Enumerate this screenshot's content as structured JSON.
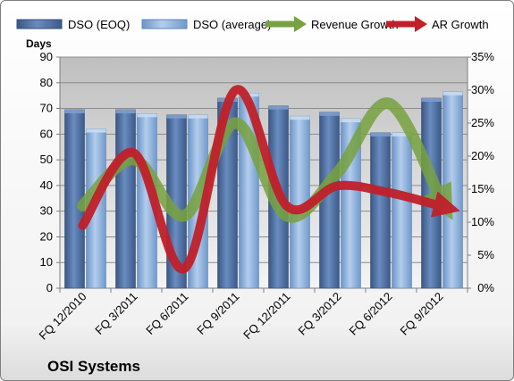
{
  "chart_data": {
    "type": "bar",
    "title": "OSI Systems",
    "ylabel": "Days",
    "categories": [
      "FQ 12/2010",
      "FQ 3/2011",
      "FQ 6/2011",
      "FQ 9/2011",
      "FQ 12/2011",
      "FQ 3/2012",
      "FQ 6/2012",
      "FQ 9/2012"
    ],
    "ylim": [
      0,
      90
    ],
    "y_ticks": [
      0,
      10,
      20,
      30,
      40,
      50,
      60,
      70,
      80,
      90
    ],
    "y2lim": [
      0,
      35
    ],
    "y2_ticks": [
      "0%",
      "5%",
      "10%",
      "15%",
      "20%",
      "25%",
      "30%",
      "35%"
    ],
    "series": [
      {
        "name": "DSO (EOQ)",
        "type": "bar",
        "axis": "left",
        "color": "#4f6fa0",
        "values": [
          69.5,
          69.5,
          67.5,
          74,
          71,
          68.5,
          60.5,
          74
        ]
      },
      {
        "name": "DSO (average)",
        "type": "bar",
        "axis": "left",
        "color": "#8db4e2",
        "values": [
          62,
          68,
          67.5,
          76,
          67,
          66,
          60.5,
          76.5
        ]
      },
      {
        "name": "Revenue Growth",
        "type": "line",
        "axis": "right",
        "color": "#77a23f",
        "values": [
          12.5,
          19.5,
          11,
          25,
          11,
          17.5,
          28,
          14
        ]
      },
      {
        "name": "AR Growth",
        "type": "line",
        "axis": "right",
        "color": "#c0202a",
        "values": [
          9.5,
          20.5,
          3,
          30,
          12.5,
          15.5,
          14.5,
          12.5
        ]
      }
    ],
    "legend_position": "top",
    "grid": true
  }
}
